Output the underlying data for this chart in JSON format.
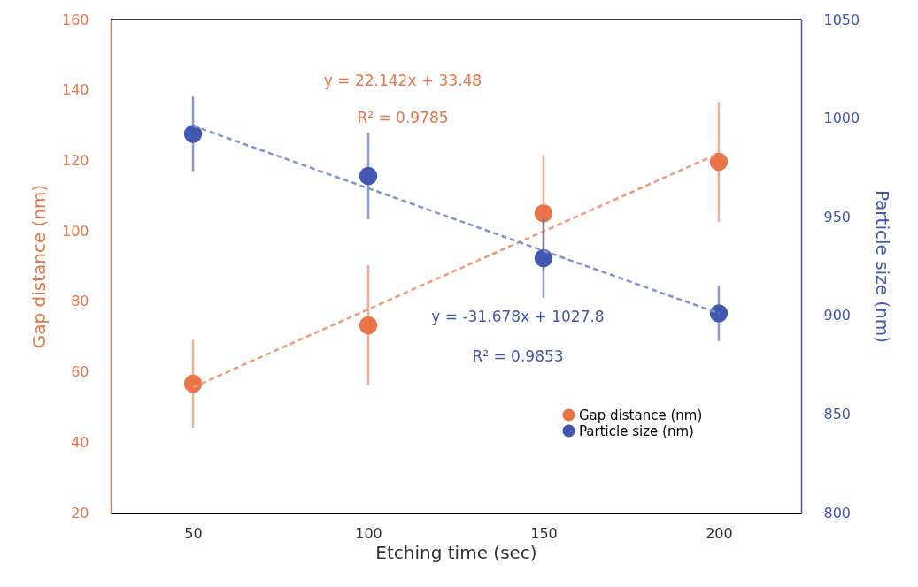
{
  "chart_data": {
    "type": "scatter",
    "xlabel": "Etching time (sec)",
    "ylabel": "Gap distance (nm)",
    "y2label": "Particle size (nm)",
    "categories": [
      "50",
      "100",
      "150",
      "200"
    ],
    "ylim": [
      20,
      160
    ],
    "yticks": [
      20,
      40,
      60,
      80,
      100,
      120,
      140,
      160
    ],
    "y2lim": [
      800,
      1050
    ],
    "y2ticks": [
      800,
      850,
      900,
      950,
      1000,
      1050
    ],
    "grid": false,
    "legend": "bottom right",
    "series": [
      {
        "name": "Gap distance (nm)",
        "color": "#ea7447",
        "marker": "circle",
        "values": [
          56.6,
          73.2,
          105,
          119.6
        ],
        "errors": [
          12.5,
          17,
          16.5,
          17
        ]
      },
      {
        "name": "Particle size (nm)",
        "color": "#4157b2",
        "axis": "y2",
        "marker": "circle",
        "values": [
          992,
          970.7,
          929,
          901
        ],
        "errors": [
          19,
          22,
          20,
          14
        ]
      },
      {
        "type": "line",
        "line_style": "dashed",
        "marker": "none",
        "color": "#f29a78",
        "x": [
          "50",
          "200"
        ],
        "values": [
          55.6,
          122.0
        ]
      },
      {
        "type": "line",
        "line_style": "dashed",
        "marker": "none",
        "color": "#8092d4",
        "axis": "y2",
        "x": [
          "50",
          "200"
        ],
        "values": [
          996.1,
          901.1
        ]
      }
    ],
    "annotations": [
      "y = 22.142x + 33.48",
      "R² = 0.9785",
      "y = -31.678x + 1027.8",
      "R² = 0.9853"
    ]
  }
}
